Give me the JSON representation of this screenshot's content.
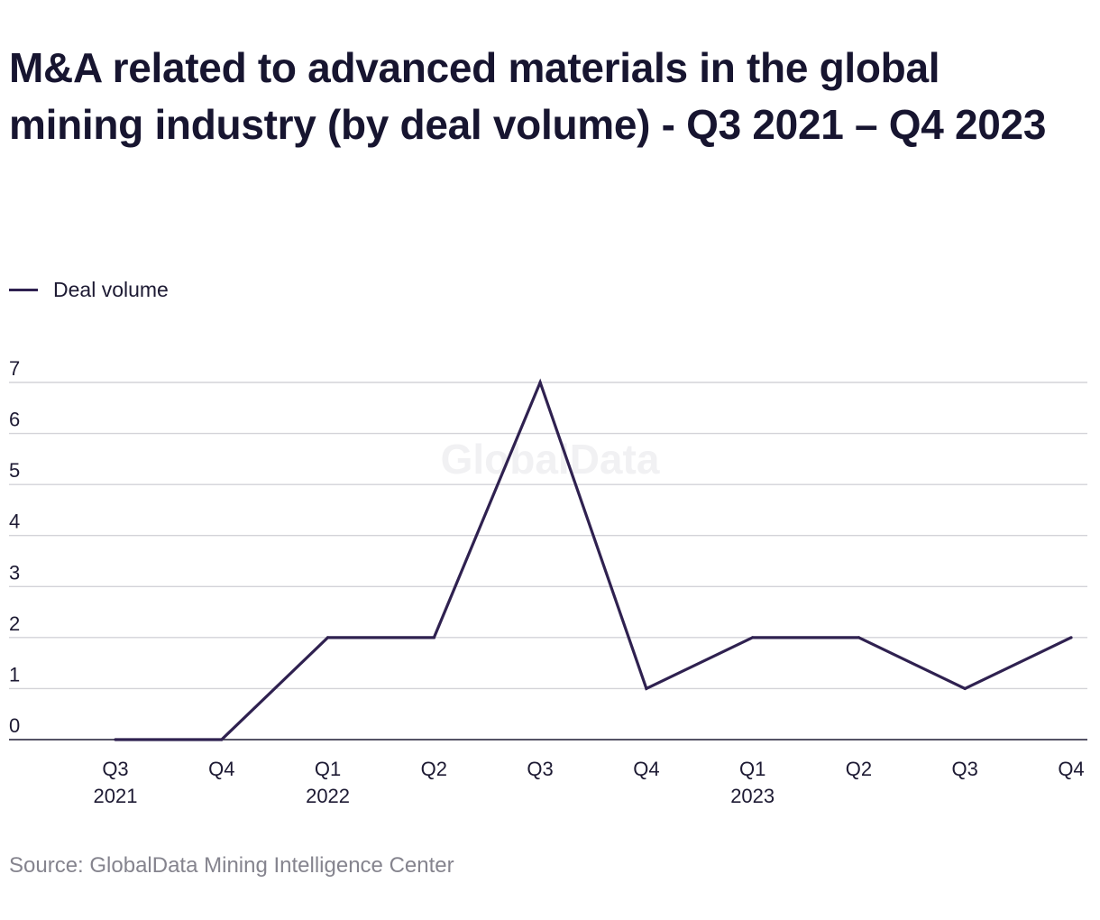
{
  "chart_data": {
    "type": "line",
    "title": "M&A related to advanced materials in the global mining industry (by deal volume) - Q3 2021 – Q4 2023",
    "categories": [
      {
        "quarter": "Q3",
        "year": "2021"
      },
      {
        "quarter": "Q4",
        "year": ""
      },
      {
        "quarter": "Q1",
        "year": "2022"
      },
      {
        "quarter": "Q2",
        "year": ""
      },
      {
        "quarter": "Q3",
        "year": ""
      },
      {
        "quarter": "Q4",
        "year": ""
      },
      {
        "quarter": "Q1",
        "year": "2023"
      },
      {
        "quarter": "Q2",
        "year": ""
      },
      {
        "quarter": "Q3",
        "year": ""
      },
      {
        "quarter": "Q4",
        "year": ""
      }
    ],
    "series": [
      {
        "name": "Deal volume",
        "values": [
          0,
          0,
          2,
          2,
          7,
          1,
          2,
          2,
          1,
          2
        ],
        "color": "#2f2150"
      }
    ],
    "ylim": [
      0,
      7
    ],
    "yticks": [
      "0",
      "1",
      "2",
      "3",
      "4",
      "5",
      "6",
      "7"
    ],
    "grid": true,
    "legend_position": "top-left",
    "xlabel": "",
    "ylabel": ""
  },
  "legend": {
    "label": "Deal volume"
  },
  "watermark": "GlobalData",
  "source": "Source: GlobalData Mining Intelligence Center"
}
